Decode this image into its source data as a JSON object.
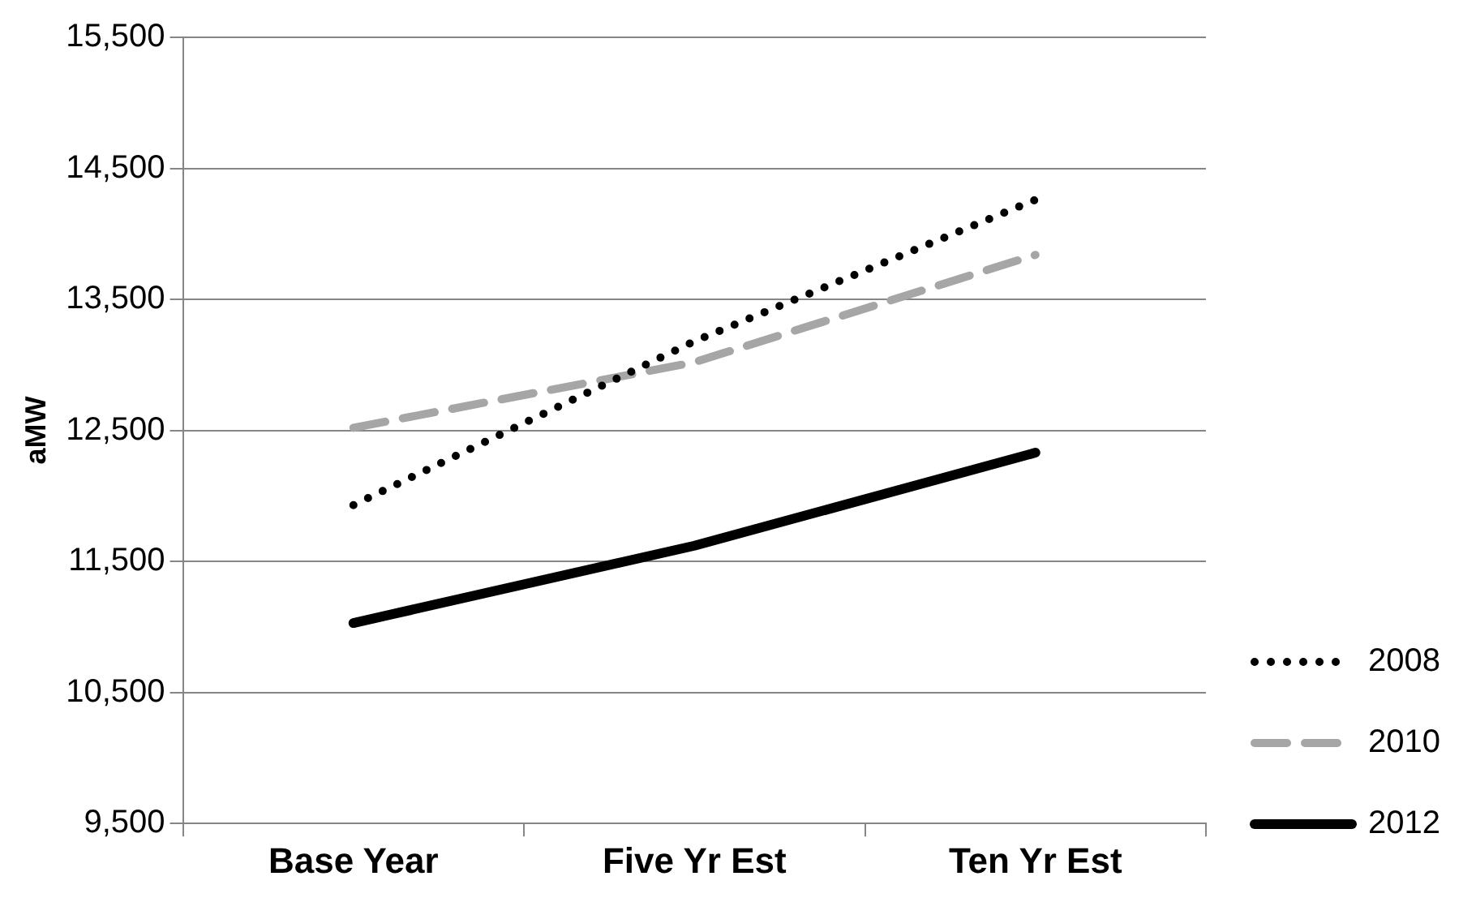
{
  "chart_data": {
    "type": "line",
    "ylabel": "aMW",
    "categories": [
      "Base Year",
      "Five Yr Est",
      "Ten Yr Est"
    ],
    "series": [
      {
        "name": "2008",
        "color": "#000000",
        "line_style": "dotted",
        "values": [
          11930,
          13180,
          14260
        ]
      },
      {
        "name": "2010",
        "color": "#a6a6a6",
        "line_style": "dashed",
        "values": [
          12520,
          13020,
          13840
        ]
      },
      {
        "name": "2012",
        "color": "#000000",
        "line_style": "solid",
        "values": [
          11030,
          11620,
          12330
        ]
      }
    ],
    "ylim": [
      9500,
      15500
    ],
    "yticks": [
      {
        "value": 9500,
        "label": "9,500"
      },
      {
        "value": 10500,
        "label": "10,500"
      },
      {
        "value": 11500,
        "label": "11,500"
      },
      {
        "value": 12500,
        "label": "12,500"
      },
      {
        "value": 13500,
        "label": "13,500"
      },
      {
        "value": 14500,
        "label": "14,500"
      },
      {
        "value": 15500,
        "label": "15,500"
      }
    ],
    "grid": "y",
    "legend": "right",
    "marker": "none"
  }
}
